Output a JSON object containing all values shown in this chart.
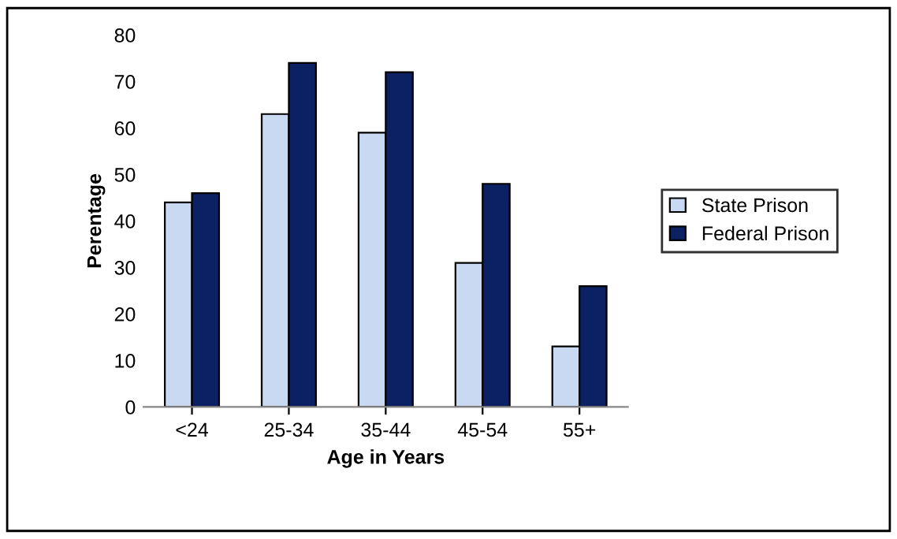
{
  "chart_data": {
    "type": "bar",
    "xlabel": "Age in Years",
    "ylabel": "Perentage",
    "categories": [
      "<24",
      "25-34",
      "35-44",
      "45-54",
      "55+"
    ],
    "series": [
      {
        "name": "State Prison",
        "color": "#c9d9f2",
        "values": [
          44,
          63,
          59,
          31,
          13
        ]
      },
      {
        "name": "Federal Prison",
        "color": "#0b2163",
        "values": [
          46,
          74,
          72,
          48,
          26
        ]
      }
    ],
    "ylim": [
      0,
      80
    ],
    "yticks": [
      0,
      10,
      20,
      30,
      40,
      50,
      60,
      70,
      80
    ],
    "grid": false,
    "legend": "right"
  }
}
